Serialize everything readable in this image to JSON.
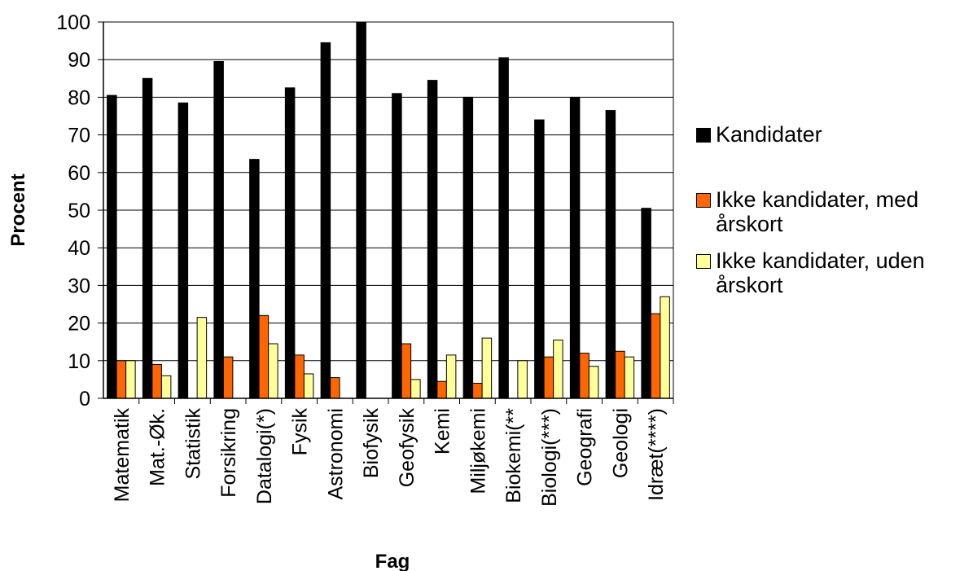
{
  "chart_data": {
    "type": "bar",
    "title": "",
    "xlabel": "Fag",
    "ylabel": "Procent",
    "ylim": [
      0,
      100
    ],
    "yticks": [
      0,
      10,
      20,
      30,
      40,
      50,
      60,
      70,
      80,
      90,
      100
    ],
    "grid": true,
    "legend_position": "right",
    "categories": [
      "Matematik",
      "Mat.-Øk.",
      "Statistik",
      "Forsikring",
      "Datalogi(*)",
      "Fysik",
      "Astronomi",
      "Biofysik",
      "Geofysik",
      "Kemi",
      "Miljøkemi",
      "Biokemi(**",
      "Biologi(***)",
      "Geografi",
      "Geologi",
      "Idræt(****)"
    ],
    "series": [
      {
        "name": "Kandidater",
        "color": "#000000",
        "values": [
          80.5,
          85,
          78.5,
          89.5,
          63.5,
          82.5,
          94.5,
          100,
          81,
          84.5,
          80,
          90.5,
          74,
          80,
          76.5,
          50.5
        ]
      },
      {
        "name": "Ikke kandidater, med årskort",
        "color": "#ff6600",
        "values": [
          10,
          9,
          0,
          11,
          22,
          11.5,
          5.5,
          0,
          14.5,
          4.5,
          4,
          0,
          11,
          12,
          12.5,
          22.5
        ]
      },
      {
        "name": "Ikke kandidater, uden årskort",
        "color": "#ffff99",
        "values": [
          10,
          6,
          21.5,
          0,
          14.5,
          6.5,
          0,
          0,
          5,
          11.5,
          16,
          10,
          15.5,
          8.5,
          11,
          27
        ]
      }
    ]
  }
}
